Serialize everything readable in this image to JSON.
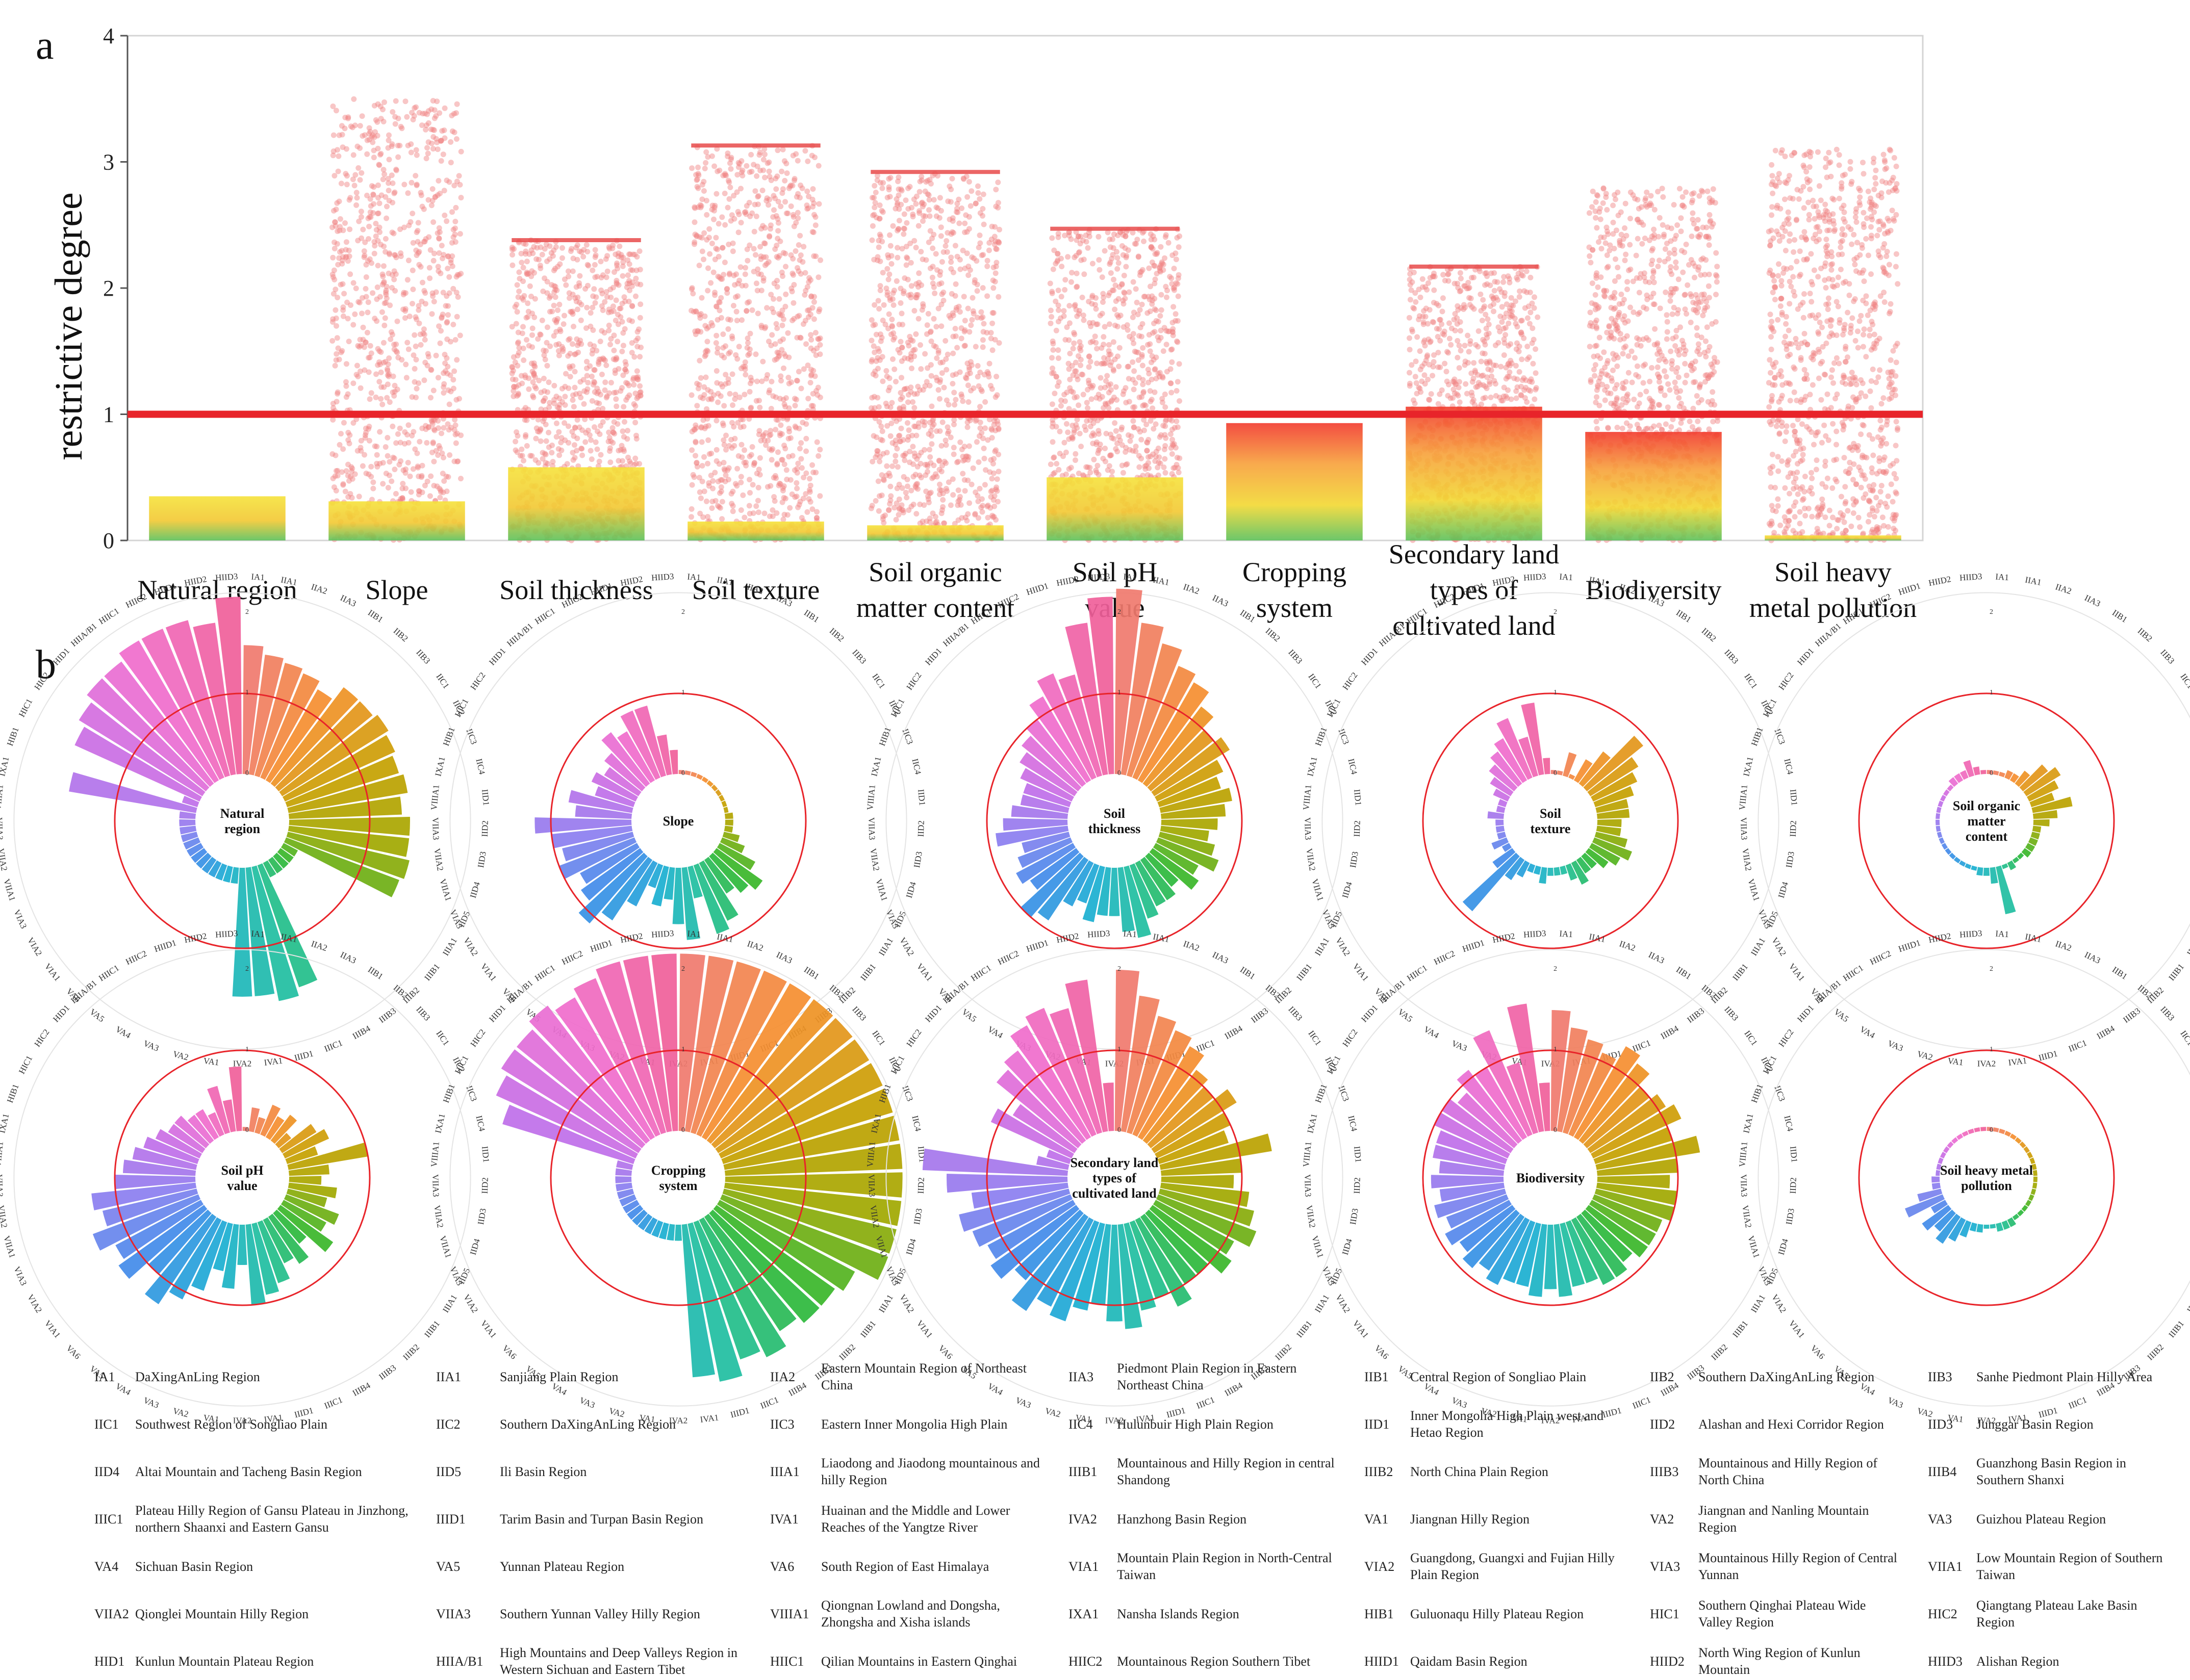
{
  "panel_labels": {
    "a": "a",
    "b": "b"
  },
  "colors": {
    "threshold": "#e8242a",
    "bar_top": "#f5e23a",
    "bar_mid": "#f2c832",
    "bar_bottom": "#5cc15a",
    "bar_top_high": "#f23a2d",
    "scatter": "#f08080",
    "wedge_hues": [
      "#f07a6e",
      "#f5902a",
      "#c6a000",
      "#a0a800",
      "#2eb82e",
      "#1fbf9f",
      "#1aaed2",
      "#3a8de8",
      "#8a7ef0",
      "#c26ee8",
      "#f06ed0",
      "#f0609a"
    ]
  },
  "chart_data": [
    {
      "type": "bar",
      "panel": "a",
      "title": "",
      "xlabel": "",
      "ylabel": "restrictive degree",
      "ylim": [
        0,
        4
      ],
      "yticks": [
        "0",
        "1",
        "2",
        "3",
        "4"
      ],
      "threshold": 1,
      "categories": [
        [
          "Natural region"
        ],
        [
          "Slope"
        ],
        [
          "Soil thickness"
        ],
        [
          "Soil texture"
        ],
        [
          "Soil organic",
          "matter content"
        ],
        [
          "Soil pH",
          "value"
        ],
        [
          "Cropping",
          "system"
        ],
        [
          "Secondary land",
          "types of",
          "cultivated land"
        ],
        [
          "Biodiversity"
        ],
        [
          "Soil heavy",
          "metal pollution"
        ]
      ],
      "values": [
        0.35,
        0.31,
        0.58,
        0.15,
        0.12,
        0.5,
        0.93,
        1.06,
        0.86,
        0.04
      ],
      "scatter_max": [
        0,
        3.5,
        2.38,
        3.13,
        2.92,
        2.47,
        0,
        2.17,
        2.8,
        3.1
      ],
      "scatter_cap": [
        0,
        0,
        2.38,
        3.13,
        2.92,
        2.47,
        0,
        2.17,
        0,
        0
      ]
    },
    {
      "type": "radial_bar",
      "panel": "b",
      "ring_ticks": [
        "0",
        "1",
        "2"
      ],
      "threshold": 1,
      "rmax": 2.2,
      "region_codes": [
        "IA1",
        "IIA1",
        "IIA2",
        "IIA3",
        "IIB1",
        "IIB2",
        "IIB3",
        "IIC1",
        "IIC2",
        "IIC3",
        "IIC4",
        "IID1",
        "IID2",
        "IID3",
        "IID4",
        "IID5",
        "IIIA1",
        "IIIB1",
        "IIIB2",
        "IIIB3",
        "IIIB4",
        "IIIC1",
        "IIID1",
        "IVA1",
        "IVA2",
        "VA1",
        "VA2",
        "VA3",
        "VA4",
        "VA5",
        "VA6",
        "VIA1",
        "VIA2",
        "VIA3",
        "VIIA1",
        "VIIA2",
        "VIIA3",
        "VIIIA1",
        "IXA1",
        "HIB1",
        "HIC1",
        "HIC2",
        "HID1",
        "HIIA/B1",
        "HIIC1",
        "HIIC2",
        "HIID1",
        "HIID2",
        "HIID3"
      ],
      "charts": [
        {
          "title": [
            "Natural",
            "region"
          ],
          "values": [
            1.6,
            1.5,
            1.45,
            1.4,
            1.3,
            1.5,
            1.5,
            1.55,
            1.5,
            1.45,
            1.5,
            1.4,
            1.5,
            1.5,
            1.55,
            1.5,
            0.2,
            0.2,
            0.2,
            0.2,
            0.2,
            1.6,
            1.7,
            1.6,
            1.6,
            0.2,
            0.2,
            0.2,
            0.2,
            0.2,
            0.2,
            0.2,
            0.2,
            0.2,
            0.2,
            0.2,
            0.2,
            0.2,
            1.6,
            0.2,
            1.7,
            1.8,
            1.9,
            1.9,
            2.0,
            2.0,
            2.0,
            1.9,
            2.2
          ]
        },
        {
          "title": [
            "Slope"
          ],
          "values": [
            0.05,
            0.05,
            0.05,
            0.05,
            0.05,
            0.05,
            0.05,
            0.05,
            0.05,
            0.05,
            0.05,
            0.1,
            0.1,
            0.1,
            0.2,
            0.3,
            0.5,
            0.7,
            0.6,
            0.5,
            0.8,
            0.9,
            0.4,
            0.9,
            0.7,
            0.4,
            0.5,
            0.3,
            0.6,
            0.9,
            1.1,
            0.9,
            0.8,
            1.0,
            0.9,
            1.0,
            1.2,
            0.7,
            0.8,
            0.5,
            0.6,
            0.5,
            0.6,
            0.8,
            0.7,
            0.9,
            0.9,
            0.5,
            0.3
          ]
        },
        {
          "title": [
            "Soil",
            "thickness"
          ],
          "values": [
            2.3,
            1.9,
            1.7,
            1.5,
            1.4,
            1.2,
            1.0,
            1.1,
            0.9,
            0.8,
            0.9,
            0.8,
            0.7,
            0.6,
            0.7,
            0.8,
            0.6,
            0.7,
            0.5,
            0.6,
            0.6,
            0.7,
            0.9,
            0.8,
            0.6,
            0.6,
            0.7,
            0.5,
            0.6,
            0.9,
            1.0,
            0.7,
            0.8,
            0.7,
            0.6,
            0.9,
            0.8,
            0.7,
            0.6,
            0.6,
            0.7,
            0.8,
            0.9,
            1.0,
            1.2,
            1.4,
            1.3,
            1.9,
            2.2
          ]
        },
        {
          "title": [
            "Soil",
            "texture"
          ],
          "values": [
            0.05,
            0.05,
            0.3,
            0.05,
            0.3,
            0.5,
            0.9,
            0.7,
            0.6,
            0.5,
            0.4,
            0.4,
            0.3,
            0.3,
            0.4,
            0.5,
            0.4,
            0.3,
            0.2,
            0.2,
            0.3,
            0.2,
            0.1,
            0.1,
            0.1,
            0.2,
            0.1,
            0.1,
            0.2,
            0.3,
            0.9,
            0.3,
            0.1,
            0.2,
            0.1,
            0.1,
            0.1,
            0.2,
            0.1,
            0.1,
            0.2,
            0.3,
            0.4,
            0.5,
            0.6,
            0.8,
            0.5,
            0.9,
            0.2
          ]
        },
        {
          "title": [
            "Soil organic",
            "matter",
            "content"
          ],
          "values": [
            0.05,
            0.05,
            0.05,
            0.1,
            0.1,
            0.2,
            0.4,
            0.5,
            0.4,
            0.3,
            0.5,
            0.3,
            0.2,
            0.1,
            0.1,
            0.1,
            0.1,
            0.1,
            0.05,
            0.05,
            0.1,
            0.05,
            0.6,
            0.2,
            0.1,
            0.1,
            0.05,
            0.05,
            0.05,
            0.05,
            0.05,
            0.05,
            0.05,
            0.05,
            0.05,
            0.05,
            0.05,
            0.05,
            0.05,
            0.05,
            0.05,
            0.05,
            0.05,
            0.1,
            0.1,
            0.1,
            0.2,
            0.1,
            0.05
          ]
        },
        {
          "title": [
            "Soil pH",
            "value"
          ],
          "values": [
            0.05,
            0.3,
            0.2,
            0.4,
            0.3,
            0.4,
            0.2,
            0.5,
            0.6,
            0.4,
            1.0,
            0.5,
            0.4,
            0.6,
            0.5,
            0.7,
            0.6,
            0.8,
            0.5,
            0.7,
            0.6,
            0.8,
            0.9,
            1.0,
            0.5,
            0.8,
            0.6,
            0.9,
            1.1,
            1.3,
            1.0,
            1.3,
            1.2,
            1.4,
            1.2,
            1.3,
            1.0,
            0.9,
            0.8,
            0.7,
            0.6,
            0.5,
            0.5,
            0.4,
            0.4,
            0.3,
            0.6,
            0.4,
            0.8
          ]
        },
        {
          "title": [
            "Cropping",
            "system"
          ],
          "values": [
            2.2,
            2.2,
            2.2,
            2.2,
            2.2,
            2.2,
            2.2,
            2.2,
            2.2,
            2.2,
            2.2,
            2.2,
            2.2,
            2.2,
            2.2,
            2.2,
            1.9,
            1.8,
            1.8,
            1.7,
            1.9,
            1.8,
            2.0,
            1.9,
            0.2,
            0.2,
            0.2,
            0.2,
            0.2,
            0.2,
            0.2,
            0.2,
            0.2,
            0.2,
            0.2,
            0.2,
            0.2,
            0.2,
            0.2,
            1.7,
            1.9,
            2.0,
            2.0,
            2.1,
            2.0,
            2.1,
            2.2,
            2.2,
            2.2
          ]
        },
        {
          "title": [
            "Secondary land",
            "types of",
            "cultivated land"
          ],
          "values": [
            2.0,
            1.7,
            1.5,
            1.4,
            1.3,
            1.1,
            1.0,
            1.2,
            1.0,
            0.9,
            1.4,
            1.0,
            0.9,
            1.1,
            1.2,
            1.3,
            1.1,
            1.2,
            1.0,
            1.0,
            1.2,
            1.0,
            1.1,
            1.3,
            1.2,
            1.0,
            1.1,
            1.3,
            1.2,
            1.4,
            1.1,
            1.3,
            1.2,
            1.3,
            1.4,
            1.2,
            1.5,
            1.8,
            0.4,
            0.3,
            1.1,
            0.9,
            1.3,
            1.4,
            1.6,
            1.7,
            1.6,
            1.9,
            0.6
          ]
        },
        {
          "title": [
            "Biodiversity"
          ],
          "values": [
            1.5,
            1.3,
            1.2,
            1.1,
            1.3,
            1.2,
            1.0,
            1.1,
            1.2,
            1.0,
            1.3,
            1.0,
            0.9,
            1.0,
            1.0,
            0.9,
            0.9,
            0.9,
            0.8,
            0.9,
            0.9,
            0.8,
            0.8,
            0.9,
            0.8,
            0.9,
            0.8,
            0.8,
            0.9,
            0.8,
            0.9,
            0.8,
            0.9,
            0.8,
            0.9,
            0.8,
            0.9,
            0.8,
            0.9,
            0.9,
            1.0,
            1.0,
            0.9,
            1.1,
            1.0,
            1.4,
            0.9,
            1.6,
            0.6
          ]
        },
        {
          "title": [
            "Soil heavy metal",
            "pollution"
          ],
          "values": [
            0.05,
            0.05,
            0.05,
            0.05,
            0.05,
            0.05,
            0.05,
            0.05,
            0.05,
            0.05,
            0.05,
            0.05,
            0.05,
            0.05,
            0.05,
            0.05,
            0.05,
            0.05,
            0.05,
            0.05,
            0.1,
            0.1,
            0.1,
            0.05,
            0.05,
            0.1,
            0.1,
            0.2,
            0.3,
            0.4,
            0.3,
            0.4,
            0.2,
            0.5,
            0.3,
            0.1,
            0.1,
            0.05,
            0.05,
            0.05,
            0.05,
            0.05,
            0.05,
            0.05,
            0.05,
            0.05,
            0.05,
            0.05,
            0.05
          ]
        }
      ]
    }
  ],
  "legend": [
    [
      {
        "code": "IA1",
        "name": [
          "DaXingAnLing Region"
        ]
      },
      {
        "code": "IIA1",
        "name": [
          "Sanjiang Plain Region"
        ]
      },
      {
        "code": "IIA2",
        "name": [
          "Eastern Mountain Region of Northeast",
          "China"
        ]
      },
      {
        "code": "IIA3",
        "name": [
          "Piedmont Plain Region in Eastern",
          "Northeast China"
        ]
      },
      {
        "code": "IIB1",
        "name": [
          "Central Region of Songliao Plain"
        ]
      },
      {
        "code": "IIB2",
        "name": [
          "Southern DaXingAnLing Region"
        ]
      },
      {
        "code": "IIB3",
        "name": [
          "Sanhe Piedmont Plain Hilly Area"
        ]
      }
    ],
    [
      {
        "code": "IIC1",
        "name": [
          "Southwest Region of Songliao Plain"
        ]
      },
      {
        "code": "IIC2",
        "name": [
          "Southern DaXingAnLing Region"
        ]
      },
      {
        "code": "IIC3",
        "name": [
          "Eastern Inner Mongolia High Plain"
        ]
      },
      {
        "code": "IIC4",
        "name": [
          "Hulunbuir High Plain Region"
        ]
      },
      {
        "code": "IID1",
        "name": [
          "Inner Mongolia High Plain west and",
          "Hetao Region"
        ]
      },
      {
        "code": "IID2",
        "name": [
          "Alashan and Hexi Corridor Region"
        ]
      },
      {
        "code": "IID3",
        "name": [
          "Junggar Basin Region"
        ]
      }
    ],
    [
      {
        "code": "IID4",
        "name": [
          "Altai Mountain and Tacheng Basin Region"
        ]
      },
      {
        "code": "IID5",
        "name": [
          "Ili Basin Region"
        ]
      },
      {
        "code": "IIIA1",
        "name": [
          "Liaodong and Jiaodong mountainous and",
          "hilly Region"
        ]
      },
      {
        "code": "IIIB1",
        "name": [
          "Mountainous and Hilly Region in central",
          "Shandong"
        ]
      },
      {
        "code": "IIIB2",
        "name": [
          "North China Plain Region"
        ]
      },
      {
        "code": "IIIB3",
        "name": [
          "Mountainous and Hilly Region of",
          "North China"
        ]
      },
      {
        "code": "IIIB4",
        "name": [
          "Guanzhong Basin Region in",
          "Southern Shanxi"
        ]
      }
    ],
    [
      {
        "code": "IIIC1",
        "name": [
          "Plateau Hilly Region of Gansu Plateau in Jinzhong,",
          "northern Shaanxi and Eastern Gansu"
        ]
      },
      {
        "code": "IIID1",
        "name": [
          "Tarim Basin and Turpan Basin Region"
        ]
      },
      {
        "code": "IVA1",
        "name": [
          "Huainan and the Middle and Lower",
          "Reaches of the Yangtze River"
        ]
      },
      {
        "code": "IVA2",
        "name": [
          "Hanzhong Basin Region"
        ]
      },
      {
        "code": "VA1",
        "name": [
          "Jiangnan Hilly Region"
        ]
      },
      {
        "code": "VA2",
        "name": [
          "Jiangnan and Nanling Mountain",
          "Region"
        ]
      },
      {
        "code": "VA3",
        "name": [
          "Guizhou Plateau Region"
        ]
      }
    ],
    [
      {
        "code": "VA4",
        "name": [
          "Sichuan Basin Region"
        ]
      },
      {
        "code": "VA5",
        "name": [
          "Yunnan Plateau Region"
        ]
      },
      {
        "code": "VA6",
        "name": [
          "South Region of East Himalaya"
        ]
      },
      {
        "code": "VIA1",
        "name": [
          "Mountain Plain Region in North-Central",
          "Taiwan"
        ]
      },
      {
        "code": "VIA2",
        "name": [
          "Guangdong, Guangxi and Fujian Hilly",
          "Plain Region"
        ]
      },
      {
        "code": "VIA3",
        "name": [
          "Mountainous Hilly Region of Central",
          "Yunnan"
        ]
      },
      {
        "code": "VIIA1",
        "name": [
          "Low Mountain Region of Southern",
          "Taiwan"
        ]
      }
    ],
    [
      {
        "code": "VIIA2",
        "name": [
          "Qionglei Mountain Hilly Region"
        ]
      },
      {
        "code": "VIIA3",
        "name": [
          "Southern Yunnan Valley Hilly Region"
        ]
      },
      {
        "code": "VIIIA1",
        "name": [
          "Qiongnan Lowland and Dongsha,",
          "Zhongsha and Xisha islands"
        ]
      },
      {
        "code": "IXA1",
        "name": [
          "Nansha Islands Region"
        ]
      },
      {
        "code": "HIB1",
        "name": [
          "Guluonaqu Hilly Plateau Region"
        ]
      },
      {
        "code": "HIC1",
        "name": [
          "Southern Qinghai Plateau Wide",
          "Valley Region"
        ]
      },
      {
        "code": "HIC2",
        "name": [
          "Qiangtang Plateau Lake Basin",
          "Region"
        ]
      }
    ],
    [
      {
        "code": "HID1",
        "name": [
          "Kunlun Mountain Plateau Region"
        ]
      },
      {
        "code": "HIIA/B1",
        "name": [
          "High Mountains and Deep Valleys Region in",
          "Western Sichuan and Eastern Tibet"
        ]
      },
      {
        "code": "HIIC1",
        "name": [
          "Qilian Mountains in Eastern Qinghai"
        ]
      },
      {
        "code": "HIIC2",
        "name": [
          "Mountainous Region Southern Tibet"
        ]
      },
      {
        "code": "HIID1",
        "name": [
          "Qaidam Basin Region"
        ]
      },
      {
        "code": "HIID2",
        "name": [
          "North Wing Region of Kunlun",
          "Mountain"
        ]
      },
      {
        "code": "HIID3",
        "name": [
          "Alishan Region"
        ]
      }
    ]
  ]
}
